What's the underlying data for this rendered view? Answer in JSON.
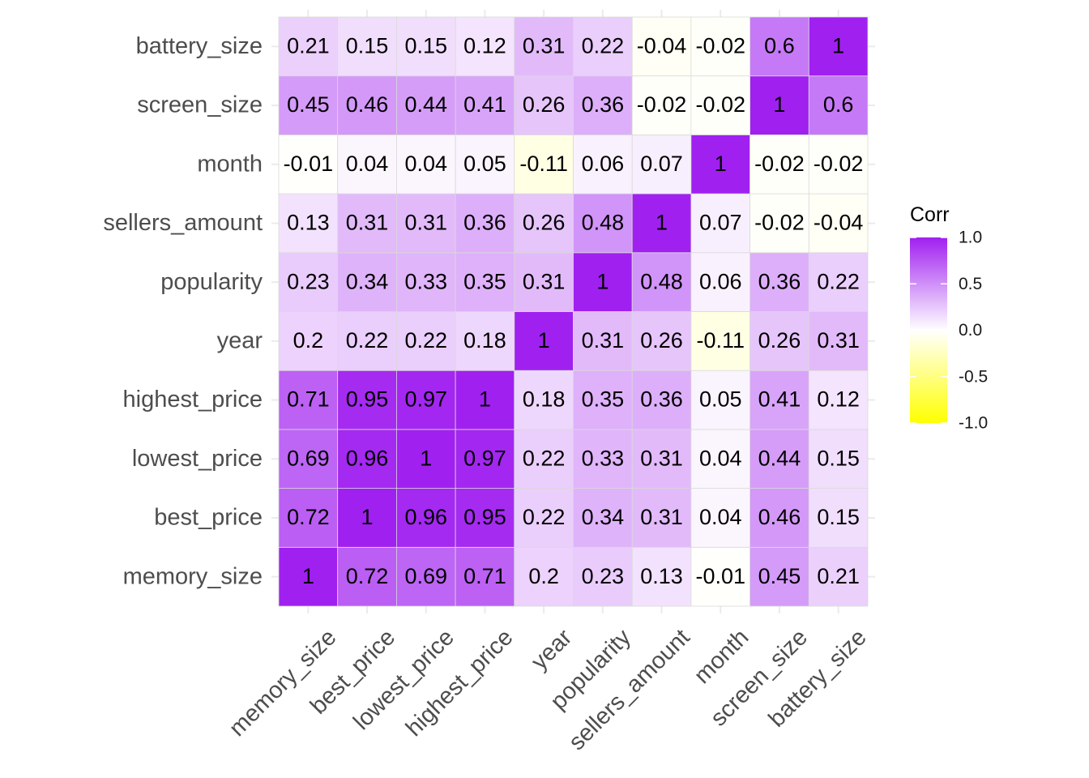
{
  "chart_data": {
    "type": "heatmap",
    "title": "",
    "variables": [
      "memory_size",
      "best_price",
      "lowest_price",
      "highest_price",
      "year",
      "popularity",
      "sellers_amount",
      "month",
      "screen_size",
      "battery_size"
    ],
    "matrix": [
      [
        "1",
        "0.72",
        "0.69",
        "0.71",
        "0.2",
        "0.23",
        "0.13",
        "-0.01",
        "0.45",
        "0.21"
      ],
      [
        "0.72",
        "1",
        "0.96",
        "0.95",
        "0.22",
        "0.34",
        "0.31",
        "0.04",
        "0.46",
        "0.15"
      ],
      [
        "0.69",
        "0.96",
        "1",
        "0.97",
        "0.22",
        "0.33",
        "0.31",
        "0.04",
        "0.44",
        "0.15"
      ],
      [
        "0.71",
        "0.95",
        "0.97",
        "1",
        "0.18",
        "0.35",
        "0.36",
        "0.05",
        "0.41",
        "0.12"
      ],
      [
        "0.2",
        "0.22",
        "0.22",
        "0.18",
        "1",
        "0.31",
        "0.26",
        "-0.11",
        "0.26",
        "0.31"
      ],
      [
        "0.23",
        "0.34",
        "0.33",
        "0.35",
        "0.31",
        "1",
        "0.48",
        "0.06",
        "0.36",
        "0.22"
      ],
      [
        "0.13",
        "0.31",
        "0.31",
        "0.36",
        "0.26",
        "0.48",
        "1",
        "0.07",
        "-0.02",
        "-0.04"
      ],
      [
        "-0.01",
        "0.04",
        "0.04",
        "0.05",
        "-0.11",
        "0.06",
        "0.07",
        "1",
        "-0.02",
        "-0.02"
      ],
      [
        "0.45",
        "0.46",
        "0.44",
        "0.41",
        "0.26",
        "0.36",
        "-0.02",
        "-0.02",
        "1",
        "0.6"
      ],
      [
        "0.21",
        "0.15",
        "0.15",
        "0.12",
        "0.31",
        "0.22",
        "-0.04",
        "-0.02",
        "0.6",
        "1"
      ]
    ],
    "legend": {
      "title": "Corr",
      "ticks": [
        "1.0",
        "0.5",
        "0.0",
        "-0.5",
        "-1.0"
      ],
      "range": [
        -1,
        1
      ],
      "placement": "right"
    },
    "colors": {
      "high": "#a020f0",
      "mid": "#ffffff",
      "low": "#ffff00",
      "grid": "#ebebeb",
      "cell_border": "#d9d9d9"
    }
  }
}
